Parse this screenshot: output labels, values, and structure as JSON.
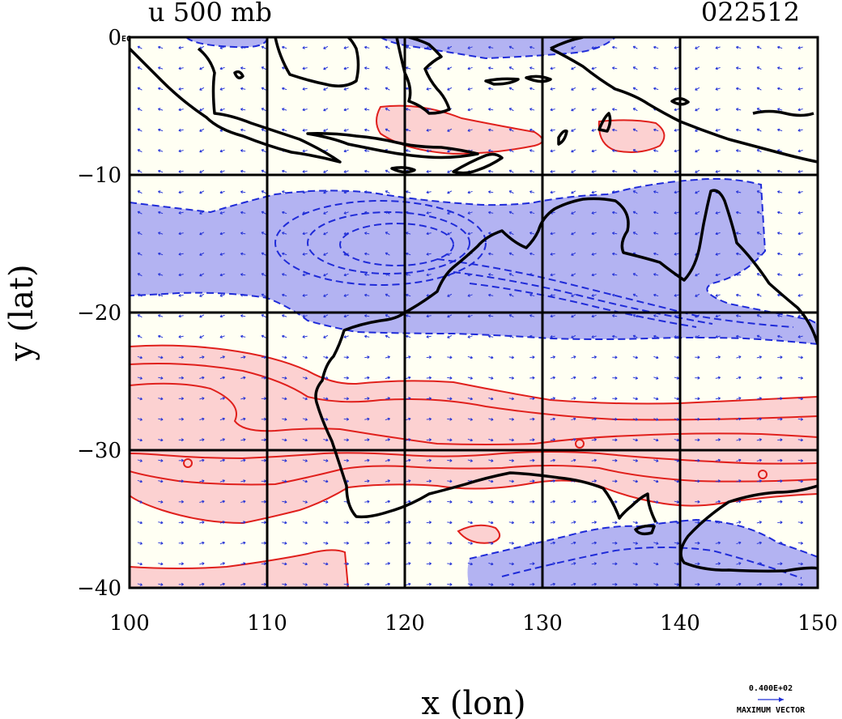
{
  "chart_data": {
    "type": "contour",
    "title": "u 500 mb",
    "date_label": "022512",
    "xlabel": "x (lon)",
    "ylabel": "y (lat)",
    "xlim": [
      100,
      150
    ],
    "ylim": [
      -40,
      0
    ],
    "x_ticks": [
      100,
      110,
      120,
      130,
      140,
      150
    ],
    "y_ticks": [
      0,
      -10,
      -20,
      -30,
      -40
    ],
    "x_tick_labels": [
      "100",
      "110",
      "120",
      "130",
      "140",
      "150"
    ],
    "y_tick_labels": [
      "0",
      "−10",
      "−20",
      "−30",
      "−40"
    ],
    "corner_tag": "EG",
    "grid": true,
    "legend": {
      "magnitude_label": "0.400E+02",
      "caption": "MAXIMUM VECTOR"
    },
    "colors": {
      "positive_fill": "#fcd1d1",
      "positive_line": "#e0201c",
      "negative_fill": "#b3b3f2",
      "negative_line": "#1f2bd8",
      "background": "#fffff3",
      "coast": "#000000",
      "vectors": "#2130d6"
    }
  }
}
